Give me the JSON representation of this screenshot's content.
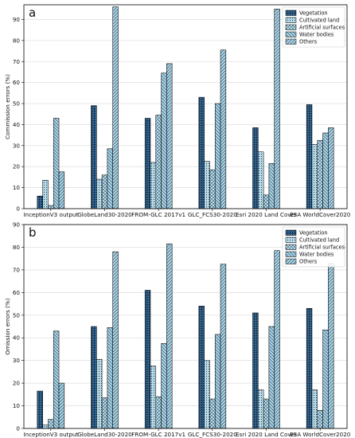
{
  "chart_data": [
    {
      "type": "bar",
      "panel_label": "a",
      "categories": [
        "InceptionV3 output",
        "GlobeLand30-2020",
        "FROM-GLC 2017v1",
        "GLC_FCS30-2020",
        "Esri 2020 Land Cover",
        "ESA WorldCover2020"
      ],
      "ylabel": "Commission errors (%)",
      "ylim": [
        0,
        97
      ],
      "yticks": [
        0,
        10,
        20,
        30,
        40,
        50,
        60,
        70,
        80,
        90
      ],
      "grid": true,
      "legend_position": "top-right",
      "series": [
        {
          "name": "Vegetation",
          "values": [
            6,
            49,
            43,
            53,
            38.5,
            49.5
          ]
        },
        {
          "name": "Cultivated land",
          "values": [
            13.5,
            14,
            22,
            22.5,
            27,
            30.5
          ]
        },
        {
          "name": "Artificial surfaces",
          "values": [
            1.5,
            16,
            44.5,
            18.5,
            6.5,
            32.5
          ]
        },
        {
          "name": "Water bodies",
          "values": [
            43,
            28.5,
            64.5,
            50,
            21.5,
            36
          ]
        },
        {
          "name": "Others",
          "values": [
            17.5,
            96,
            69,
            75.5,
            95,
            38.5
          ]
        }
      ]
    },
    {
      "type": "bar",
      "panel_label": "b",
      "categories": [
        "InceptionV3 output",
        "GlobeLand30-2020",
        "FROM-GLC 2017v1",
        "GLC_FCS30-2020",
        "Esri 2020 Land Cover",
        "ESA WorldCover2020"
      ],
      "ylabel": "Omission errors (%)",
      "ylim": [
        0,
        90
      ],
      "yticks": [
        0,
        10,
        20,
        30,
        40,
        50,
        60,
        70,
        80,
        90
      ],
      "grid": true,
      "legend_position": "top-right",
      "series": [
        {
          "name": "Vegetation",
          "values": [
            16.5,
            45,
            61,
            54,
            51,
            53
          ]
        },
        {
          "name": "Cultivated land",
          "values": [
            1.5,
            30.5,
            27.5,
            30,
            17,
            17
          ]
        },
        {
          "name": "Artificial surfaces",
          "values": [
            4,
            13.5,
            14,
            13,
            13,
            8
          ]
        },
        {
          "name": "Water bodies",
          "values": [
            43,
            44.5,
            37.5,
            41.5,
            45,
            43.5
          ]
        },
        {
          "name": "Others",
          "values": [
            20,
            78,
            81.5,
            72.5,
            78.5,
            73
          ]
        }
      ]
    }
  ],
  "series_styles": [
    {
      "color": "#1f4e79",
      "hatch": "dots-dense"
    },
    {
      "color": "#b8dcea",
      "hatch": "dots-light"
    },
    {
      "color": "#b8dcea",
      "hatch": "cross"
    },
    {
      "color": "#a9d3e4",
      "hatch": "backslash"
    },
    {
      "color": "#a9d3e4",
      "hatch": "slash"
    }
  ]
}
